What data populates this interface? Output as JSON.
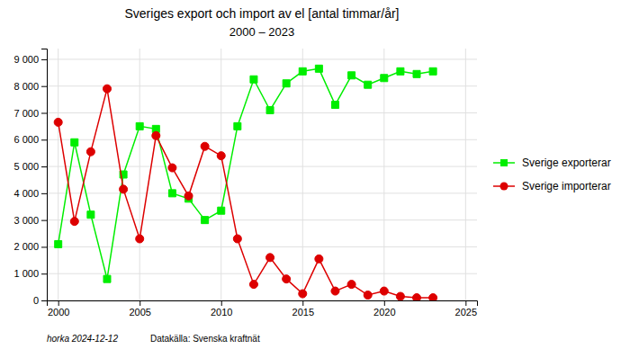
{
  "chart_data": {
    "type": "line",
    "title": "Sveriges export och import av el [antal timmar/år]",
    "subtitle": "2000 – 2023",
    "x": [
      2000,
      2001,
      2002,
      2003,
      2004,
      2005,
      2006,
      2007,
      2008,
      2009,
      2010,
      2011,
      2012,
      2013,
      2014,
      2015,
      2016,
      2017,
      2018,
      2019,
      2020,
      2021,
      2022,
      2023
    ],
    "series": [
      {
        "name": "Sverige exporterar",
        "color": "#00ee00",
        "marker": "square",
        "line_style": "solid",
        "values": [
          2100,
          5900,
          3200,
          800,
          4700,
          6500,
          6400,
          4000,
          3800,
          3000,
          3350,
          6500,
          8250,
          7100,
          8100,
          8550,
          8650,
          7300,
          8400,
          8050,
          8300,
          8550,
          8450,
          8550
        ]
      },
      {
        "name": "Sverige importerar",
        "color": "#dd0000",
        "marker": "circle",
        "line_style": "solid",
        "values": [
          6650,
          2950,
          5550,
          7900,
          4150,
          2300,
          6150,
          4950,
          3900,
          5750,
          5400,
          2300,
          600,
          1600,
          800,
          250,
          1550,
          350,
          600,
          200,
          350,
          150,
          100,
          100
        ]
      }
    ],
    "xlim": [
      1999.3,
      2025.7
    ],
    "xticks": [
      2000,
      2005,
      2010,
      2015,
      2020,
      2025
    ],
    "ylim": [
      0,
      9400
    ],
    "yticks": [
      0,
      {
        "value": 1000,
        "label": "1 000"
      },
      {
        "value": 2000,
        "label": "2 000"
      },
      {
        "value": 3000,
        "label": "3 000"
      },
      {
        "value": 4000,
        "label": "4 000"
      },
      {
        "value": 5000,
        "label": "5 000"
      },
      {
        "value": 6000,
        "label": "6 000"
      },
      {
        "value": 7000,
        "label": "7 000"
      },
      {
        "value": 8000,
        "label": "8 000"
      },
      {
        "value": 9000,
        "label": "9 000"
      }
    ],
    "grid": true,
    "legend": "right",
    "annotations": [
      "horka 2024-12-12",
      "Datakälla: Svenska kraftnät"
    ]
  }
}
